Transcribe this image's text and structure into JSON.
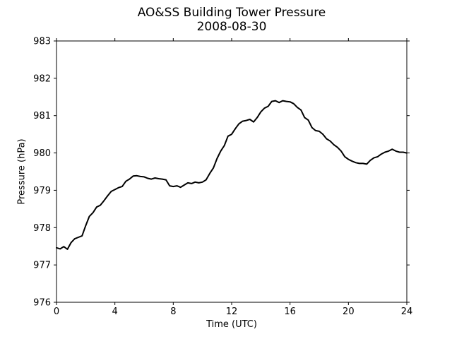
{
  "chart_data": {
    "type": "line",
    "title": "AO&SS Building Tower Pressure",
    "subtitle": "2008-08-30",
    "xlabel": "Time (UTC)",
    "ylabel": "Pressure (hPa)",
    "xlim": [
      0,
      24
    ],
    "ylim": [
      976,
      983
    ],
    "xticks": [
      "0",
      "4",
      "8",
      "12",
      "16",
      "20",
      "24"
    ],
    "yticks": [
      "976",
      "977",
      "978",
      "979",
      "980",
      "981",
      "982",
      "983"
    ],
    "grid": false,
    "line_color": "#000000",
    "series": [
      {
        "x": [
          0,
          0.25,
          0.5,
          0.75,
          1,
          1.25,
          1.5,
          1.75,
          2,
          2.25,
          2.5,
          2.75,
          3,
          3.25,
          3.5,
          3.75,
          4,
          4.25,
          4.5,
          4.75,
          5,
          5.25,
          5.5,
          5.75,
          6,
          6.25,
          6.5,
          6.75,
          7,
          7.25,
          7.5,
          7.75,
          8,
          8.25,
          8.5,
          8.75,
          9,
          9.25,
          9.5,
          9.75,
          10,
          10.25,
          10.5,
          10.75,
          11,
          11.25,
          11.5,
          11.75,
          12,
          12.25,
          12.5,
          12.75,
          13,
          13.25,
          13.5,
          13.75,
          14,
          14.25,
          14.5,
          14.75,
          15,
          15.25,
          15.5,
          15.75,
          16,
          16.25,
          16.5,
          16.75,
          17,
          17.25,
          17.5,
          17.75,
          18,
          18.25,
          18.5,
          18.75,
          19,
          19.25,
          19.5,
          19.75,
          20,
          20.25,
          20.5,
          20.75,
          21,
          21.25,
          21.5,
          21.75,
          22,
          22.25,
          22.5,
          22.75,
          23,
          23.25,
          23.5,
          23.75,
          24
        ],
        "y": [
          977.46,
          977.43,
          977.49,
          977.42,
          977.6,
          977.7,
          977.74,
          977.78,
          978.05,
          978.3,
          978.4,
          978.55,
          978.6,
          978.72,
          978.85,
          978.97,
          979.02,
          979.07,
          979.1,
          979.24,
          979.3,
          979.38,
          979.39,
          979.37,
          979.36,
          979.32,
          979.3,
          979.33,
          979.31,
          979.3,
          979.28,
          979.12,
          979.1,
          979.12,
          979.08,
          979.14,
          979.2,
          979.18,
          979.22,
          979.2,
          979.22,
          979.28,
          979.45,
          979.6,
          979.85,
          980.05,
          980.2,
          980.45,
          980.5,
          980.65,
          980.78,
          980.85,
          980.87,
          980.9,
          980.83,
          980.95,
          981.1,
          981.2,
          981.25,
          981.38,
          981.4,
          981.35,
          981.4,
          981.38,
          981.37,
          981.32,
          981.22,
          981.15,
          980.95,
          980.88,
          980.68,
          980.6,
          980.58,
          980.5,
          980.38,
          980.32,
          980.22,
          980.15,
          980.05,
          979.9,
          979.83,
          979.78,
          979.74,
          979.72,
          979.72,
          979.7,
          979.8,
          979.87,
          979.9,
          979.97,
          980.02,
          980.05,
          980.1,
          980.05,
          980.02,
          980.02,
          980.0
        ]
      }
    ]
  }
}
